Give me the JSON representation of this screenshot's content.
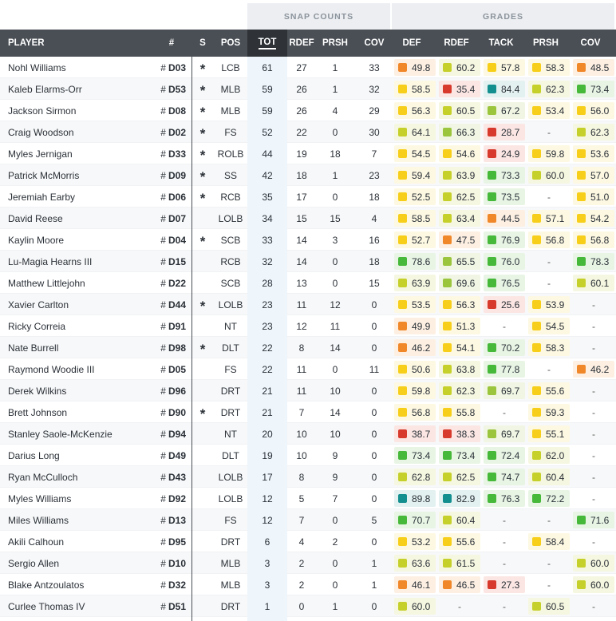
{
  "groups": {
    "snap": "SNAP COUNTS",
    "grades": "GRADES"
  },
  "headers": {
    "player": "PLAYER",
    "num": "#",
    "s": "S",
    "pos": "POS",
    "tot": "TOT",
    "rdef": "RDEF",
    "prsh": "PRSH",
    "cov": "COV",
    "g_def": "DEF",
    "g_rdef": "RDEF",
    "g_tack": "TACK",
    "g_prsh": "PRSH",
    "g_cov": "COV"
  },
  "colors": {
    "orange": "#f0882a",
    "yellow": "#f7cf1a",
    "lime": "#c6d02b",
    "green": "#46b83a",
    "teal": "#148f8f",
    "red": "#d73a2c"
  },
  "players": [
    {
      "name": "Nohl Williams",
      "num": "D03",
      "starter": true,
      "pos": "LCB",
      "tot": "61",
      "rdef": "27",
      "prsh": "1",
      "cov": "33",
      "grades": [
        "49.8",
        "60.2",
        "57.8",
        "58.3",
        "48.5"
      ]
    },
    {
      "name": "Kaleb Elarms-Orr",
      "num": "D53",
      "starter": true,
      "pos": "MLB",
      "tot": "59",
      "rdef": "26",
      "prsh": "1",
      "cov": "32",
      "grades": [
        "58.5",
        "35.4",
        "84.4",
        "62.3",
        "73.4"
      ]
    },
    {
      "name": "Jackson Sirmon",
      "num": "D08",
      "starter": true,
      "pos": "MLB",
      "tot": "59",
      "rdef": "26",
      "prsh": "4",
      "cov": "29",
      "grades": [
        "56.3",
        "60.5",
        "67.2",
        "53.4",
        "56.0"
      ]
    },
    {
      "name": "Craig Woodson",
      "num": "D02",
      "starter": true,
      "pos": "FS",
      "tot": "52",
      "rdef": "22",
      "prsh": "0",
      "cov": "30",
      "grades": [
        "64.1",
        "66.3",
        "28.7",
        "-",
        "62.3"
      ]
    },
    {
      "name": "Myles Jernigan",
      "num": "D33",
      "starter": true,
      "pos": "ROLB",
      "tot": "44",
      "rdef": "19",
      "prsh": "18",
      "cov": "7",
      "grades": [
        "54.5",
        "54.6",
        "24.9",
        "59.8",
        "53.6"
      ]
    },
    {
      "name": "Patrick McMorris",
      "num": "D09",
      "starter": true,
      "pos": "SS",
      "tot": "42",
      "rdef": "18",
      "prsh": "1",
      "cov": "23",
      "grades": [
        "59.4",
        "63.9",
        "73.3",
        "60.0",
        "57.0"
      ]
    },
    {
      "name": "Jeremiah Earby",
      "num": "D06",
      "starter": true,
      "pos": "RCB",
      "tot": "35",
      "rdef": "17",
      "prsh": "0",
      "cov": "18",
      "grades": [
        "52.5",
        "62.5",
        "73.5",
        "-",
        "51.0"
      ]
    },
    {
      "name": "David Reese",
      "num": "D07",
      "starter": false,
      "pos": "LOLB",
      "tot": "34",
      "rdef": "15",
      "prsh": "15",
      "cov": "4",
      "grades": [
        "58.5",
        "63.4",
        "44.5",
        "57.1",
        "54.2"
      ]
    },
    {
      "name": "Kaylin Moore",
      "num": "D04",
      "starter": true,
      "pos": "SCB",
      "tot": "33",
      "rdef": "14",
      "prsh": "3",
      "cov": "16",
      "grades": [
        "52.7",
        "47.5",
        "76.9",
        "56.8",
        "56.8"
      ]
    },
    {
      "name": "Lu-Magia Hearns III",
      "num": "D15",
      "starter": false,
      "pos": "RCB",
      "tot": "32",
      "rdef": "14",
      "prsh": "0",
      "cov": "18",
      "grades": [
        "78.6",
        "65.5",
        "76.0",
        "-",
        "78.3"
      ]
    },
    {
      "name": "Matthew Littlejohn",
      "num": "D22",
      "starter": false,
      "pos": "SCB",
      "tot": "28",
      "rdef": "13",
      "prsh": "0",
      "cov": "15",
      "grades": [
        "63.9",
        "69.6",
        "76.5",
        "-",
        "60.1"
      ]
    },
    {
      "name": "Xavier Carlton",
      "num": "D44",
      "starter": true,
      "pos": "LOLB",
      "tot": "23",
      "rdef": "11",
      "prsh": "12",
      "cov": "0",
      "grades": [
        "53.5",
        "56.3",
        "25.6",
        "53.9",
        "-"
      ]
    },
    {
      "name": "Ricky Correia",
      "num": "D91",
      "starter": false,
      "pos": "NT",
      "tot": "23",
      "rdef": "12",
      "prsh": "11",
      "cov": "0",
      "grades": [
        "49.9",
        "51.3",
        "-",
        "54.5",
        "-"
      ]
    },
    {
      "name": "Nate Burrell",
      "num": "D98",
      "starter": true,
      "pos": "DLT",
      "tot": "22",
      "rdef": "8",
      "prsh": "14",
      "cov": "0",
      "grades": [
        "46.2",
        "54.1",
        "70.2",
        "58.3",
        "-"
      ]
    },
    {
      "name": "Raymond Woodie III",
      "num": "D05",
      "starter": false,
      "pos": "FS",
      "tot": "22",
      "rdef": "11",
      "prsh": "0",
      "cov": "11",
      "grades": [
        "50.6",
        "63.8",
        "77.8",
        "-",
        "46.2"
      ]
    },
    {
      "name": "Derek Wilkins",
      "num": "D96",
      "starter": false,
      "pos": "DRT",
      "tot": "21",
      "rdef": "11",
      "prsh": "10",
      "cov": "0",
      "grades": [
        "59.8",
        "62.3",
        "69.7",
        "55.6",
        "-"
      ]
    },
    {
      "name": "Brett Johnson",
      "num": "D90",
      "starter": true,
      "pos": "DRT",
      "tot": "21",
      "rdef": "7",
      "prsh": "14",
      "cov": "0",
      "grades": [
        "56.8",
        "55.8",
        "-",
        "59.3",
        "-"
      ]
    },
    {
      "name": "Stanley Saole-McKenzie",
      "num": "D94",
      "starter": false,
      "pos": "NT",
      "tot": "20",
      "rdef": "10",
      "prsh": "10",
      "cov": "0",
      "grades": [
        "38.7",
        "38.3",
        "69.7",
        "55.1",
        "-"
      ]
    },
    {
      "name": "Darius Long",
      "num": "D49",
      "starter": false,
      "pos": "DLT",
      "tot": "19",
      "rdef": "10",
      "prsh": "9",
      "cov": "0",
      "grades": [
        "73.4",
        "73.4",
        "72.4",
        "62.0",
        "-"
      ]
    },
    {
      "name": "Ryan McCulloch",
      "num": "D43",
      "starter": false,
      "pos": "LOLB",
      "tot": "17",
      "rdef": "8",
      "prsh": "9",
      "cov": "0",
      "grades": [
        "62.8",
        "62.5",
        "74.7",
        "60.4",
        "-"
      ]
    },
    {
      "name": "Myles Williams",
      "num": "D92",
      "starter": false,
      "pos": "LOLB",
      "tot": "12",
      "rdef": "5",
      "prsh": "7",
      "cov": "0",
      "grades": [
        "89.8",
        "82.9",
        "76.3",
        "72.2",
        "-"
      ]
    },
    {
      "name": "Miles Williams",
      "num": "D13",
      "starter": false,
      "pos": "FS",
      "tot": "12",
      "rdef": "7",
      "prsh": "0",
      "cov": "5",
      "grades": [
        "70.7",
        "60.4",
        "-",
        "-",
        "71.6"
      ]
    },
    {
      "name": "Akili Calhoun",
      "num": "D95",
      "starter": false,
      "pos": "DRT",
      "tot": "6",
      "rdef": "4",
      "prsh": "2",
      "cov": "0",
      "grades": [
        "53.2",
        "55.6",
        "-",
        "58.4",
        "-"
      ]
    },
    {
      "name": "Sergio Allen",
      "num": "D10",
      "starter": false,
      "pos": "MLB",
      "tot": "3",
      "rdef": "2",
      "prsh": "0",
      "cov": "1",
      "grades": [
        "63.6",
        "61.5",
        "-",
        "-",
        "60.0"
      ]
    },
    {
      "name": "Blake Antzoulatos",
      "num": "D32",
      "starter": false,
      "pos": "MLB",
      "tot": "3",
      "rdef": "2",
      "prsh": "0",
      "cov": "1",
      "grades": [
        "46.1",
        "46.5",
        "27.3",
        "-",
        "60.0"
      ]
    },
    {
      "name": "Curlee Thomas IV",
      "num": "D51",
      "starter": false,
      "pos": "DRT",
      "tot": "1",
      "rdef": "0",
      "prsh": "1",
      "cov": "0",
      "grades": [
        "60.0",
        "-",
        "-",
        "60.5",
        "-"
      ]
    }
  ]
}
